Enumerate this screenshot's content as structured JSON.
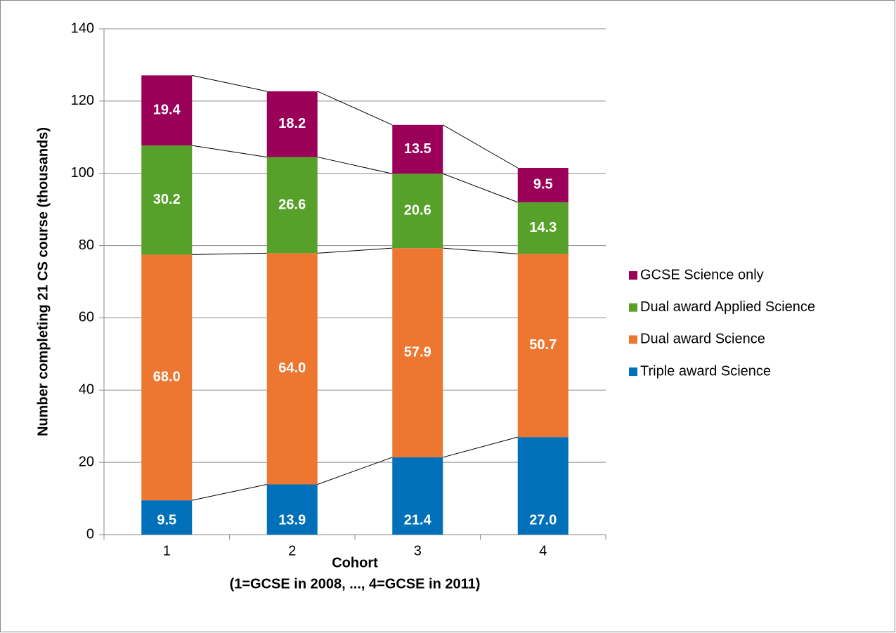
{
  "chart_data": {
    "type": "stacked-bar",
    "ylabel": "Number completing 21 CS course (thousands)",
    "xlabel": [
      "Cohort",
      "(1=GCSE in 2008, ..., 4=GCSE in 2011)"
    ],
    "categories": [
      "1",
      "2",
      "3",
      "4"
    ],
    "series": [
      {
        "name": "Triple award Science",
        "color": "#0070b8",
        "values": [
          9.5,
          13.9,
          21.4,
          27.0
        ],
        "value_labels": [
          "9.5",
          "13.9",
          "21.4",
          "27.0"
        ]
      },
      {
        "name": "Dual award Science",
        "color": "#ed7731",
        "values": [
          68.0,
          64.0,
          57.9,
          50.7
        ],
        "value_labels": [
          "68.0",
          "64.0",
          "57.9",
          "50.7"
        ]
      },
      {
        "name": "Dual award Applied Science",
        "color": "#57a02a",
        "values": [
          30.2,
          26.6,
          20.6,
          14.3
        ],
        "value_labels": [
          "30.2",
          "26.6",
          "20.6",
          "14.3"
        ]
      },
      {
        "name": "GCSE Science only",
        "color": "#9b0058",
        "values": [
          19.4,
          18.2,
          13.5,
          9.5
        ],
        "value_labels": [
          "19.4",
          "18.2",
          "13.5",
          "9.5"
        ]
      }
    ],
    "ylim": [
      0,
      140
    ],
    "yticks": [
      0,
      20,
      40,
      60,
      80,
      100,
      120,
      140
    ],
    "grid": true,
    "legend": "right"
  }
}
